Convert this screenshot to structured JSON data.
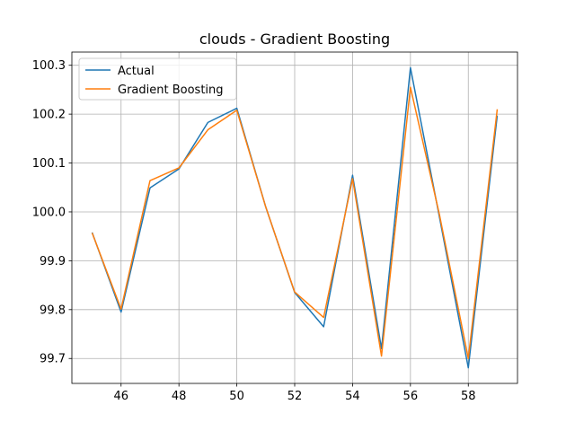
{
  "chart_data": {
    "type": "line",
    "title": "clouds - Gradient Boosting",
    "xlabel": "",
    "ylabel": "",
    "x": [
      45,
      46,
      47,
      48,
      49,
      50,
      51,
      52,
      53,
      54,
      55,
      56,
      57,
      58,
      59
    ],
    "series": [
      {
        "name": "Actual",
        "color": "#1f77b4",
        "values": [
          99.958,
          99.795,
          100.049,
          100.088,
          100.183,
          100.212,
          100.01,
          99.835,
          99.765,
          100.075,
          99.72,
          100.295,
          99.99,
          99.681,
          100.197
        ]
      },
      {
        "name": "Gradient Boosting",
        "color": "#ff7f0e",
        "values": [
          99.957,
          99.801,
          100.064,
          100.09,
          100.168,
          100.208,
          100.01,
          99.836,
          99.784,
          100.068,
          99.705,
          100.255,
          99.995,
          99.7,
          100.21
        ]
      }
    ],
    "xlim": [
      44.3,
      59.7
    ],
    "ylim": [
      99.649,
      100.327
    ],
    "xticks": [
      46,
      48,
      50,
      52,
      54,
      56,
      58
    ],
    "xtick_labels": [
      "46",
      "48",
      "50",
      "52",
      "54",
      "56",
      "58"
    ],
    "yticks": [
      99.7,
      99.8,
      99.9,
      100.0,
      100.1,
      100.2,
      100.3
    ],
    "ytick_labels": [
      "99.7",
      "99.8",
      "99.9",
      "100.0",
      "100.1",
      "100.2",
      "100.3"
    ],
    "grid": true,
    "legend_position": "upper-left",
    "colors": {
      "grid": "#b0b0b0",
      "axes": "#000000",
      "legend_border": "#cccccc"
    }
  }
}
